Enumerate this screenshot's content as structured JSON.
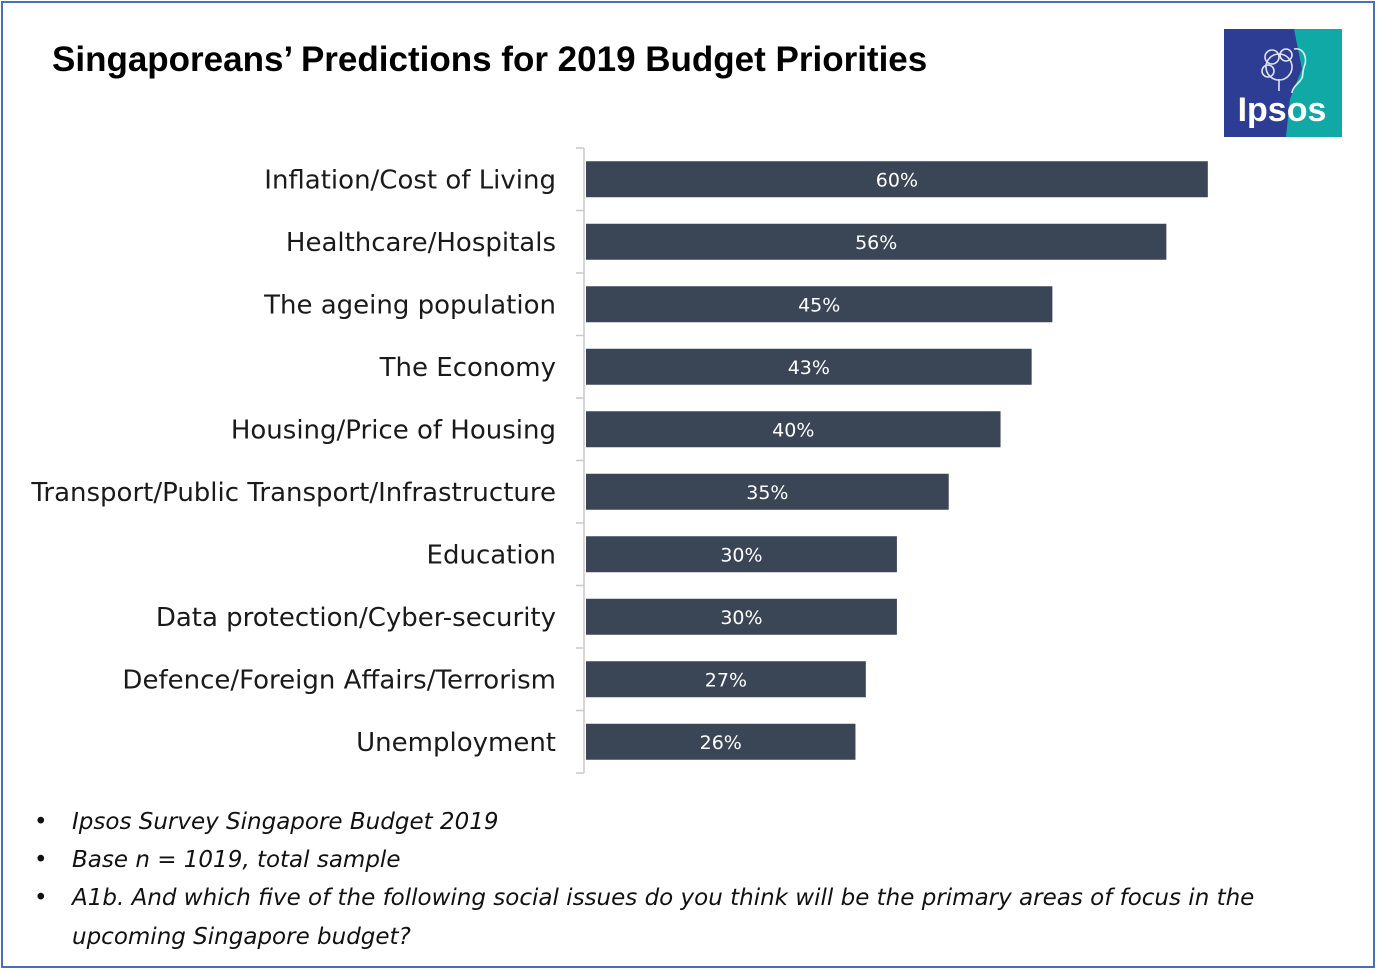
{
  "title": "Singaporeans’ Predictions for 2019 Budget Priorities",
  "logo": {
    "text": "Ipsos",
    "icon": "ipsos-logo-icon",
    "color_blue": "#2d3d94",
    "color_teal": "#10a9a6"
  },
  "chart_data": {
    "type": "bar",
    "orientation": "horizontal",
    "categories": [
      "Inflation/Cost of Living",
      "Healthcare/Hospitals",
      "The ageing population",
      "The Economy",
      "Housing/Price of Housing",
      "Transport/Public Transport/Infrastructure",
      "Education",
      "Data protection/Cyber-security",
      "Defence/Foreign Affairs/Terrorism",
      "Unemployment"
    ],
    "values": [
      60,
      56,
      45,
      43,
      40,
      35,
      30,
      30,
      27,
      26
    ],
    "value_labels": [
      "60%",
      "56%",
      "45%",
      "43%",
      "40%",
      "35%",
      "30%",
      "30%",
      "27%",
      "26%"
    ],
    "unit": "%",
    "xlim": [
      0,
      66
    ],
    "bar_color": "#3a4556",
    "grid": false,
    "legend": "none"
  },
  "notes": [
    "Ipsos Survey Singapore Budget 2019",
    "Base n = 1019, total sample",
    "A1b. And which five of the following social issues do you think will be the primary areas of focus in the upcoming Singapore budget?"
  ],
  "bullet": "•"
}
